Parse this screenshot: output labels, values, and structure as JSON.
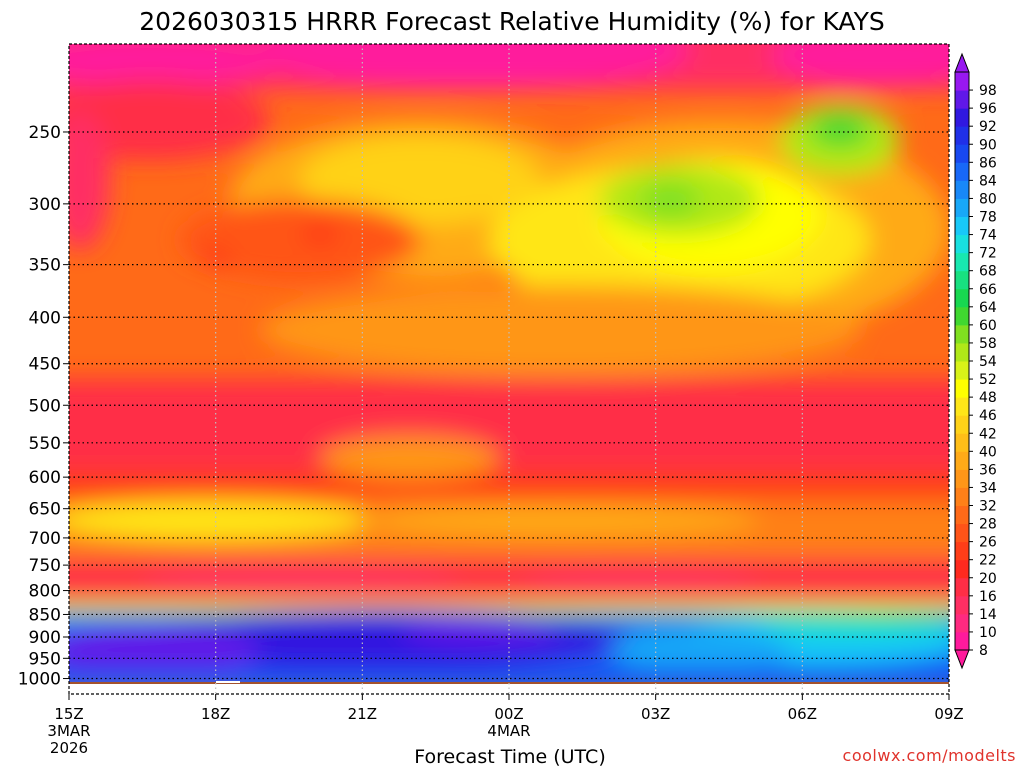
{
  "chart_data": {
    "type": "heatmap",
    "title": "2026030315 HRRR Forecast Relative Humidity (%) for KAYS",
    "xlabel": "Forecast Time (UTC)",
    "x_ticks": [
      {
        "hour": 0,
        "label": "15Z",
        "sub1": "3MAR",
        "sub2": "2026"
      },
      {
        "hour": 3,
        "label": "18Z",
        "sub1": "",
        "sub2": ""
      },
      {
        "hour": 6,
        "label": "21Z",
        "sub1": "",
        "sub2": ""
      },
      {
        "hour": 9,
        "label": "00Z",
        "sub1": "4MAR",
        "sub2": ""
      },
      {
        "hour": 12,
        "label": "03Z",
        "sub1": "",
        "sub2": ""
      },
      {
        "hour": 15,
        "label": "06Z",
        "sub1": "",
        "sub2": ""
      },
      {
        "hour": 18,
        "label": "09Z",
        "sub1": "",
        "sub2": ""
      }
    ],
    "xlim": [
      0,
      18
    ],
    "y_levels_hpa": [
      250,
      300,
      350,
      400,
      450,
      500,
      550,
      600,
      650,
      700,
      750,
      800,
      850,
      900,
      950,
      1000
    ],
    "ylim_hpa": [
      200,
      1040
    ],
    "y_scale": "log-pressure",
    "grid": true,
    "colorbar_levels": [
      8,
      10,
      14,
      16,
      20,
      22,
      26,
      28,
      32,
      34,
      36,
      40,
      42,
      46,
      48,
      52,
      54,
      58,
      60,
      64,
      66,
      68,
      72,
      74,
      78,
      80,
      84,
      86,
      90,
      92,
      96,
      98
    ],
    "colorbar_colors": [
      "#ff1a9c",
      "#ff2a80",
      "#ff2f63",
      "#ff2e46",
      "#ff2a1f",
      "#ff3e18",
      "#ff5418",
      "#ff6a18",
      "#ff8018",
      "#ff9618",
      "#ffaa18",
      "#ffbe18",
      "#ffd218",
      "#ffe618",
      "#ffff00",
      "#d8f218",
      "#b0e818",
      "#80e020",
      "#40d830",
      "#18d850",
      "#18e080",
      "#18e8b0",
      "#18e0e0",
      "#18c8f8",
      "#18a8f8",
      "#1888f8",
      "#1868f8",
      "#1848f0",
      "#2030e8",
      "#3018e0",
      "#6018e8",
      "#9818f0"
    ],
    "credit": "coolwx.com/modelts",
    "surface_color": "#a3522e"
  }
}
